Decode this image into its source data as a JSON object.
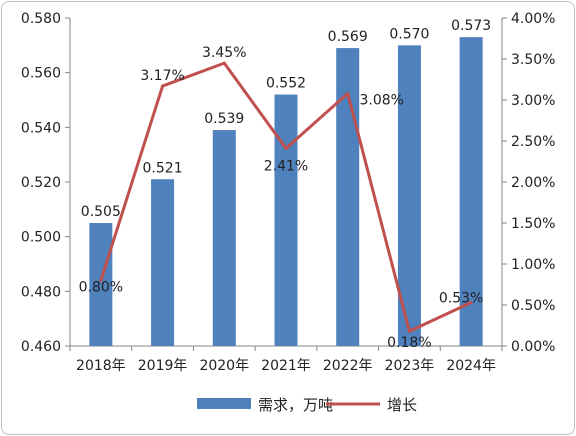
{
  "chart_data": {
    "type": "bar+line",
    "categories": [
      "2018年",
      "2019年",
      "2020年",
      "2021年",
      "2022年",
      "2023年",
      "2024年"
    ],
    "series": [
      {
        "name": "需求，万吨",
        "type": "bar",
        "axis": "left",
        "color": "#4f81bd",
        "values": [
          0.505,
          0.521,
          0.539,
          0.552,
          0.569,
          0.57,
          0.573
        ],
        "labels": [
          "0.505",
          "0.521",
          "0.539",
          "0.552",
          "0.569",
          "0.570",
          "0.573"
        ]
      },
      {
        "name": "增长",
        "type": "line",
        "axis": "right",
        "color": "#c0504d",
        "values": [
          0.8,
          3.17,
          3.45,
          2.41,
          3.08,
          0.18,
          0.53
        ],
        "labels": [
          "0.80%",
          "3.17%",
          "3.45%",
          "2.41%",
          "3.08%",
          "0.18%",
          "0.53%"
        ]
      }
    ],
    "y_left": {
      "range": [
        0.46,
        0.58
      ],
      "ticks": [
        "0.460",
        "0.480",
        "0.500",
        "0.520",
        "0.540",
        "0.560",
        "0.580"
      ]
    },
    "y_right": {
      "range": [
        0,
        4
      ],
      "ticks": [
        "0.00%",
        "0.50%",
        "1.00%",
        "1.50%",
        "2.00%",
        "2.50%",
        "3.00%",
        "3.50%",
        "4.00%"
      ]
    },
    "grid": false,
    "legend": "bottom"
  }
}
